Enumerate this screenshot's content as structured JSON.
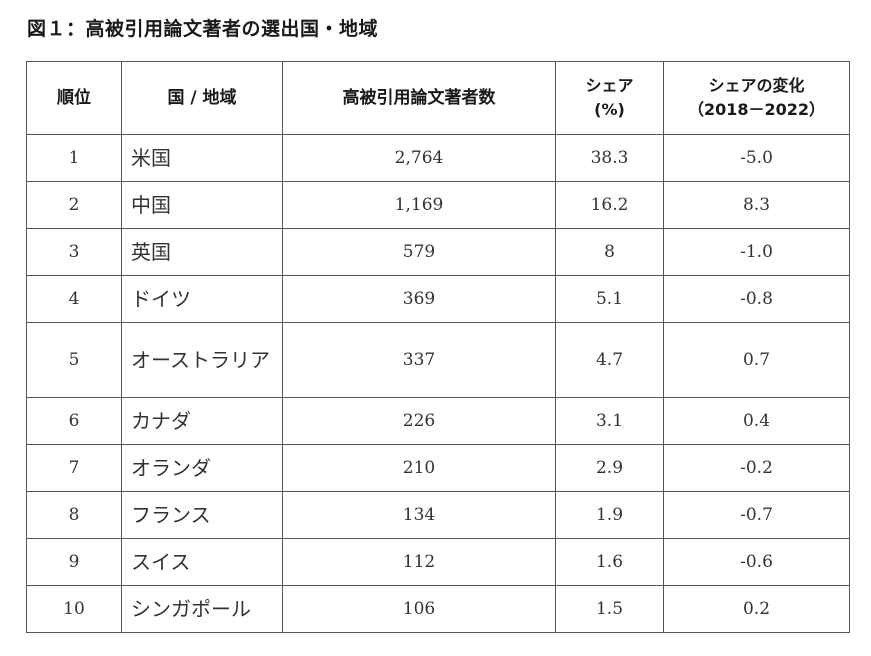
{
  "title": "図１：高被引用論文著者の選出国・地域",
  "headers": {
    "rank": "順位",
    "country": "国 / 地域",
    "count": "高被引用論文著者数",
    "share_line1": "シェア",
    "share_line2": "(%)",
    "change_line1": "シェアの変化",
    "change_line2": "（2018－2022）"
  },
  "rows": [
    {
      "rank": "1",
      "country": "米国",
      "count": "2,764",
      "share": "38.3",
      "change": "-5.0"
    },
    {
      "rank": "2",
      "country": "中国",
      "count": "1,169",
      "share": "16.2",
      "change": "8.3"
    },
    {
      "rank": "3",
      "country": "英国",
      "count": "579",
      "share": "8",
      "change": "-1.0"
    },
    {
      "rank": "4",
      "country": "ドイツ",
      "count": "369",
      "share": "5.1",
      "change": "-0.8"
    },
    {
      "rank": "5",
      "country": "オーストラリア",
      "count": "337",
      "share": "4.7",
      "change": "0.7"
    },
    {
      "rank": "6",
      "country": "カナダ",
      "count": "226",
      "share": "3.1",
      "change": "0.4"
    },
    {
      "rank": "7",
      "country": "オランダ",
      "count": "210",
      "share": "2.9",
      "change": "-0.2"
    },
    {
      "rank": "8",
      "country": "フランス",
      "count": "134",
      "share": "1.9",
      "change": "-0.7"
    },
    {
      "rank": "9",
      "country": "スイス",
      "count": "112",
      "share": "1.6",
      "change": "-0.6"
    },
    {
      "rank": "10",
      "country": "シンガポール",
      "count": "106",
      "share": "1.5",
      "change": "0.2"
    }
  ]
}
